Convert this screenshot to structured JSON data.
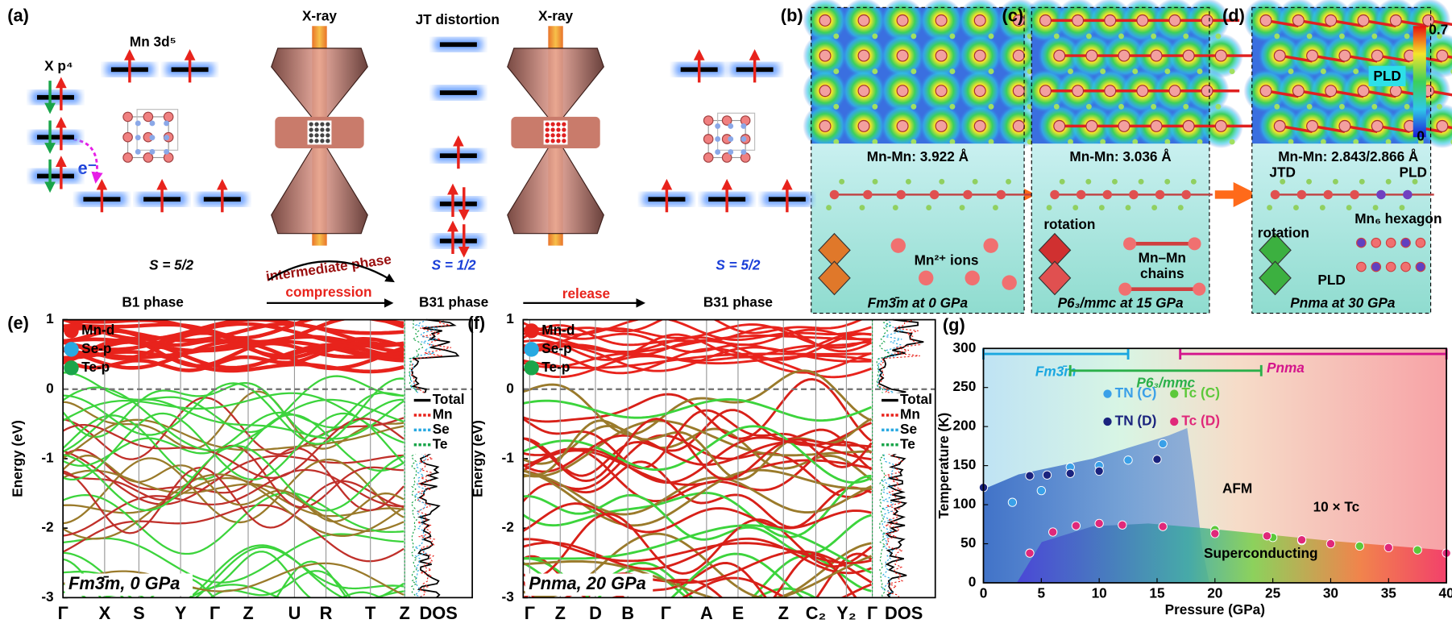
{
  "panel_a": {
    "label": "(a)",
    "x_orbital": "X p⁴",
    "mn_orbital": "Mn 3d⁵",
    "electron": "e⁻",
    "xray_1": "X-ray",
    "jt": "JT distortion",
    "xray_2": "X-ray",
    "spin_1": "S = 5/2",
    "spin_2": "S = 1/2",
    "spin_3": "S = 5/2",
    "phase_1": "B1 phase",
    "intermediate": "intermediate phase",
    "compression": "compression",
    "phase_2": "B31 phase",
    "release": "release",
    "phase_3": "B31 phase"
  },
  "panel_b": {
    "label": "(b)",
    "distance": "Mn-Mn: 3.922 Å",
    "ions": "Mn²⁺ ions",
    "caption": "Fm3̄m at 0 GPa"
  },
  "panel_c": {
    "label": "(c)",
    "distance": "Mn-Mn: 3.036 Å",
    "rotation": "rotation",
    "chains_1": "Mn–Mn",
    "chains_2": "chains",
    "caption": "P6₃/mmc at 15 GPa"
  },
  "panel_d": {
    "label": "(d)",
    "pld_map": "PLD",
    "distance": "Mn-Mn: 2.843/2.866 Å",
    "jtd": "JTD",
    "pld_chain": "PLD",
    "rotation": "rotation",
    "hexagon": "Mn₆ hexagon",
    "pld_bottom": "PLD",
    "caption": "Pnma at 30 GPa",
    "colorbar_max": 0.7,
    "colorbar_min": 0
  },
  "chart_data": [
    {
      "type": "band",
      "label": "(e)",
      "ylabel": "Energy (eV)",
      "ylim": [
        -3,
        1
      ],
      "yticks": [
        -3,
        -2,
        -1,
        0,
        1
      ],
      "categories": [
        "Γ",
        "X",
        "S",
        "Y",
        "Γ",
        "Z",
        "U",
        "R",
        "T",
        "Z"
      ],
      "dos_label": "DOS",
      "legend": [
        {
          "name": "Mn-d",
          "color": "#e8231c"
        },
        {
          "name": "Se-p",
          "color": "#29a9e1"
        },
        {
          "name": "Te-p",
          "color": "#1aa54a"
        }
      ],
      "dos_legend": [
        {
          "name": "Total",
          "color": "#000000"
        },
        {
          "name": "Mn",
          "color": "#e8231c"
        },
        {
          "name": "Se",
          "color": "#29a9e1"
        },
        {
          "name": "Te",
          "color": "#1aa54a"
        }
      ],
      "annotation": "Fm3̄m, 0 GPa"
    },
    {
      "type": "band",
      "label": "(f)",
      "ylabel": "Energy (eV)",
      "ylim": [
        -3,
        1
      ],
      "yticks": [
        -3,
        -2,
        -1,
        0,
        1
      ],
      "categories": [
        "Γ",
        "Z",
        "D",
        "B",
        "Γ",
        "A",
        "E",
        "Z",
        "C₂",
        "Y₂",
        "Γ"
      ],
      "dos_label": "DOS",
      "legend": [
        {
          "name": "Mn-d",
          "color": "#e8231c"
        },
        {
          "name": "Se-p",
          "color": "#29a9e1"
        },
        {
          "name": "Te-p",
          "color": "#1aa54a"
        }
      ],
      "dos_legend": [
        {
          "name": "Total",
          "color": "#000000"
        },
        {
          "name": "Mn",
          "color": "#e8231c"
        },
        {
          "name": "Se",
          "color": "#29a9e1"
        },
        {
          "name": "Te",
          "color": "#1aa54a"
        }
      ],
      "annotation": "Pnma, 20 GPa"
    },
    {
      "type": "scatter",
      "label": "(g)",
      "xlabel": "Pressure (GPa)",
      "ylabel": "Temperature (K)",
      "xlim": [
        0,
        40
      ],
      "ylim": [
        0,
        300
      ],
      "xticks": [
        0,
        5,
        10,
        15,
        20,
        25,
        30,
        35,
        40
      ],
      "yticks": [
        0,
        50,
        100,
        150,
        200,
        250,
        300
      ],
      "phases": [
        {
          "name": "Fm3̄m",
          "range": [
            0,
            12.5
          ],
          "color": "#1aa7e0"
        },
        {
          "name": "P6₃/mmc",
          "range": [
            7.5,
            24
          ],
          "color": "#2bb04a"
        },
        {
          "name": "Pnma",
          "range": [
            17,
            40
          ],
          "color": "#d4148c"
        }
      ],
      "series": [
        {
          "name": "TN (C)",
          "color": "#3aa0e8",
          "x": [
            2.5,
            5,
            7.5,
            10,
            12.5,
            15.5
          ],
          "values": [
            103,
            118,
            148,
            150,
            157,
            178
          ]
        },
        {
          "name": "Tc (C)",
          "color": "#5cc83a",
          "x": [
            20,
            25,
            27.5,
            32.5,
            37.5
          ],
          "values": [
            68,
            58,
            54,
            47,
            42
          ]
        },
        {
          "name": "TN (D)",
          "color": "#1a237e",
          "x": [
            0,
            4,
            5.5,
            7.5,
            10,
            15
          ],
          "values": [
            122,
            137,
            138,
            140,
            143,
            158
          ]
        },
        {
          "name": "Tc (D)",
          "color": "#e0287a",
          "x": [
            4,
            6,
            8,
            10,
            12,
            15.5,
            20,
            24.5,
            27.5,
            30,
            35,
            40
          ],
          "values": [
            38,
            65,
            73,
            76,
            74,
            72,
            63,
            60,
            55,
            50,
            45,
            38
          ]
        }
      ],
      "annotations": [
        "AFM",
        "10 × Tc",
        "Superconducting"
      ]
    }
  ]
}
